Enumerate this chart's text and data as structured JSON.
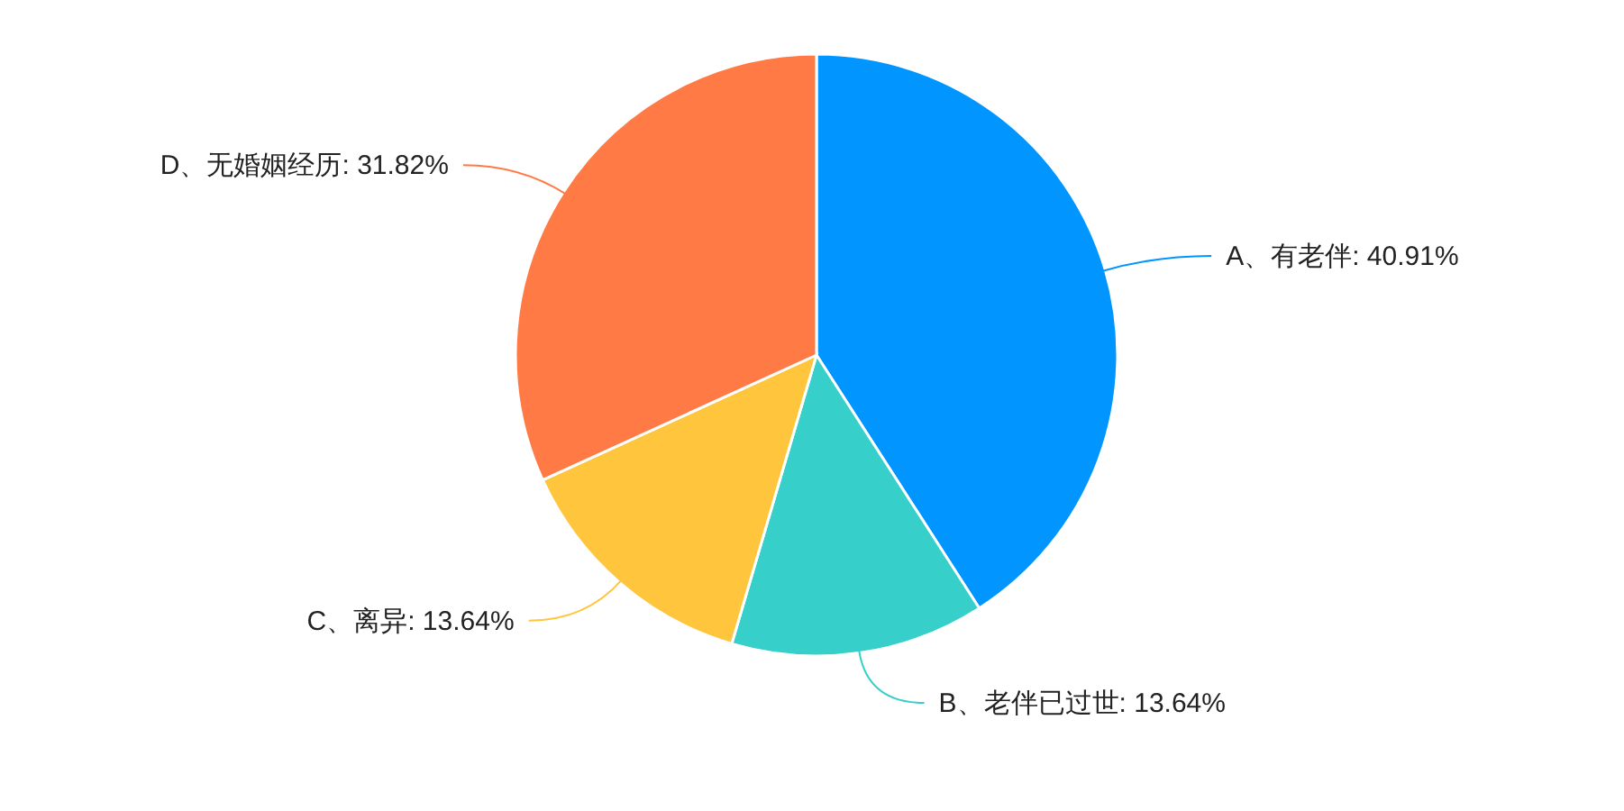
{
  "chart_data": {
    "type": "pie",
    "categories": [
      "A、有老伴",
      "B、老伴已过世",
      "C、离异",
      "D、无婚姻经历"
    ],
    "values": [
      40.91,
      13.64,
      13.64,
      31.82
    ],
    "value_labels": [
      "40.91%",
      "13.64%",
      "13.64%",
      "31.82%"
    ],
    "colors": [
      "#0095ff",
      "#36cfc9",
      "#ffc53d",
      "#ff7a45"
    ]
  }
}
